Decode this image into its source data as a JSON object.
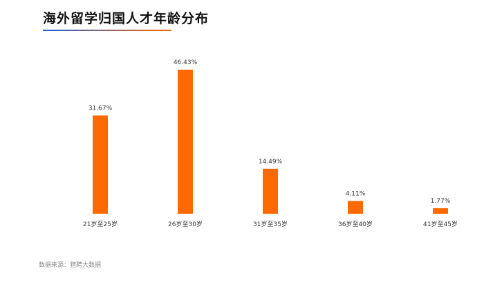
{
  "title": "海外留学归国人才年龄分布",
  "source": "数据来源：猎聘大数据",
  "colors": {
    "bar": "#ff6a00",
    "underline_start": "#1f5fd6",
    "underline_end": "#ff6a00",
    "text": "#333333"
  },
  "chart_data": {
    "type": "bar",
    "title": "海外留学归国人才年龄分布",
    "categories": [
      "21岁至25岁",
      "26岁至30岁",
      "31岁至35岁",
      "36岁至40岁",
      "41岁至45岁"
    ],
    "values": [
      31.67,
      46.43,
      14.49,
      4.11,
      1.77
    ],
    "value_labels": [
      "31.67%",
      "46.43%",
      "14.49%",
      "4.11%",
      "1.77%"
    ],
    "ylim": [
      0,
      50
    ],
    "grid": false,
    "legend": false
  }
}
